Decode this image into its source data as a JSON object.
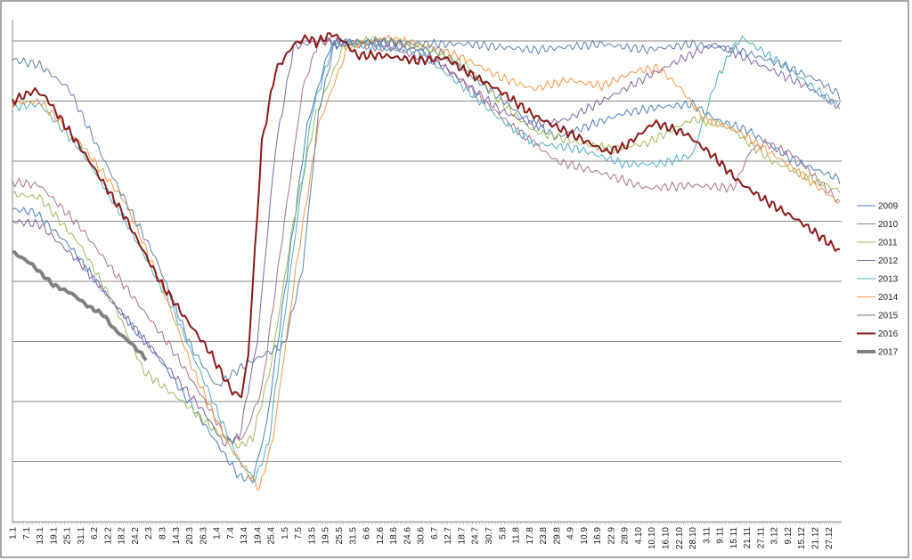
{
  "chart_data": {
    "type": "line",
    "title": "",
    "xlabel": "",
    "ylabel": "",
    "x_unit": "day of year",
    "xlim": [
      0,
      365
    ],
    "ylim": [
      0,
      8
    ],
    "y_gridlines": [
      0,
      1,
      2,
      3,
      4,
      5,
      6,
      7,
      8
    ],
    "y_tick_labels_visible": false,
    "grid": true,
    "legend_position": "right",
    "x_tick_step_days": 6,
    "x_tick_labels": [
      "1.1",
      "7.1",
      "13.1",
      "19.1",
      "25.1",
      "31.1",
      "6.2",
      "12.2",
      "18.2",
      "24.2",
      "2.3",
      "8.3",
      "14.3",
      "20.3",
      "26.3",
      "1.4",
      "7.4",
      "13.4",
      "19.4",
      "25.4",
      "1.5",
      "7.5",
      "13.5",
      "19.5",
      "25.5",
      "31.5",
      "6.6",
      "12.6",
      "18.6",
      "24.6",
      "30.6",
      "6.7",
      "12.7",
      "18.7",
      "24.7",
      "30.7",
      "5.8",
      "11.8",
      "17.8",
      "23.8",
      "29.8",
      "4.9",
      "10.9",
      "16.9",
      "22.9",
      "28.9",
      "4.10",
      "10.10",
      "16.10",
      "22.10",
      "28.10",
      "3.11",
      "9.11",
      "15.11",
      "21.11",
      "27.11",
      "3.12",
      "9.12",
      "15.12",
      "21.12",
      "27.12"
    ],
    "series": [
      {
        "name": "2009",
        "color": "#4a7ebb",
        "width": 1,
        "points": [
          [
            0,
            5.2
          ],
          [
            10,
            5.15
          ],
          [
            25,
            4.6
          ],
          [
            45,
            3.6
          ],
          [
            65,
            2.7
          ],
          [
            85,
            1.6
          ],
          [
            100,
            0.75
          ],
          [
            106,
            0.7
          ],
          [
            112,
            1.6
          ],
          [
            120,
            3.8
          ],
          [
            130,
            6.6
          ],
          [
            140,
            7.9
          ],
          [
            150,
            8.0
          ],
          [
            170,
            7.95
          ],
          [
            190,
            7.8
          ],
          [
            210,
            7.2
          ],
          [
            225,
            6.75
          ],
          [
            240,
            6.4
          ],
          [
            255,
            6.6
          ],
          [
            270,
            6.8
          ],
          [
            285,
            6.9
          ],
          [
            300,
            6.95
          ],
          [
            310,
            6.7
          ],
          [
            325,
            6.5
          ],
          [
            345,
            6.0
          ],
          [
            365,
            5.7
          ]
        ]
      },
      {
        "name": "2010",
        "color": "#aa7088",
        "width": 1,
        "points": [
          [
            0,
            5.65
          ],
          [
            12,
            5.6
          ],
          [
            30,
            4.9
          ],
          [
            50,
            3.9
          ],
          [
            70,
            2.9
          ],
          [
            85,
            2.0
          ],
          [
            95,
            1.35
          ],
          [
            102,
            1.4
          ],
          [
            110,
            2.2
          ],
          [
            120,
            5.0
          ],
          [
            128,
            7.2
          ],
          [
            135,
            8.0
          ],
          [
            150,
            7.95
          ],
          [
            170,
            7.85
          ],
          [
            190,
            7.6
          ],
          [
            205,
            7.1
          ],
          [
            220,
            6.6
          ],
          [
            240,
            6.0
          ],
          [
            260,
            5.8
          ],
          [
            280,
            5.55
          ],
          [
            300,
            5.6
          ],
          [
            318,
            5.55
          ],
          [
            326,
            6.2
          ],
          [
            332,
            6.3
          ],
          [
            345,
            6.1
          ],
          [
            365,
            5.3
          ]
        ]
      },
      {
        "name": "2011",
        "color": "#9bbb59",
        "width": 1,
        "points": [
          [
            0,
            5.45
          ],
          [
            12,
            5.4
          ],
          [
            30,
            4.6
          ],
          [
            45,
            3.6
          ],
          [
            58,
            2.5
          ],
          [
            75,
            2.0
          ],
          [
            90,
            1.5
          ],
          [
            100,
            1.25
          ],
          [
            106,
            1.4
          ],
          [
            114,
            2.6
          ],
          [
            124,
            5.0
          ],
          [
            134,
            6.8
          ],
          [
            146,
            7.9
          ],
          [
            160,
            8.05
          ],
          [
            180,
            7.9
          ],
          [
            200,
            7.6
          ],
          [
            215,
            7.0
          ],
          [
            230,
            6.5
          ],
          [
            250,
            6.3
          ],
          [
            265,
            6.2
          ],
          [
            280,
            6.3
          ],
          [
            300,
            6.7
          ],
          [
            315,
            6.6
          ],
          [
            335,
            6.0
          ],
          [
            365,
            5.5
          ]
        ]
      },
      {
        "name": "2012",
        "color": "#8064a2",
        "width": 1,
        "points": [
          [
            0,
            5.0
          ],
          [
            12,
            4.95
          ],
          [
            30,
            4.3
          ],
          [
            50,
            3.4
          ],
          [
            70,
            2.5
          ],
          [
            85,
            1.8
          ],
          [
            93,
            1.3
          ],
          [
            100,
            1.4
          ],
          [
            108,
            3.0
          ],
          [
            116,
            6.2
          ],
          [
            124,
            7.9
          ],
          [
            135,
            8.0
          ],
          [
            160,
            7.95
          ],
          [
            180,
            7.85
          ],
          [
            200,
            7.3
          ],
          [
            215,
            6.85
          ],
          [
            230,
            6.6
          ],
          [
            245,
            6.7
          ],
          [
            265,
            7.1
          ],
          [
            280,
            7.4
          ],
          [
            295,
            7.7
          ],
          [
            310,
            7.95
          ],
          [
            330,
            7.6
          ],
          [
            350,
            7.25
          ],
          [
            365,
            6.9
          ]
        ]
      },
      {
        "name": "2013",
        "color": "#4bacc6",
        "width": 1,
        "points": [
          [
            0,
            6.9
          ],
          [
            12,
            6.95
          ],
          [
            30,
            6.2
          ],
          [
            50,
            5.0
          ],
          [
            70,
            3.6
          ],
          [
            85,
            2.3
          ],
          [
            100,
            1.0
          ],
          [
            107,
            0.7
          ],
          [
            113,
            1.3
          ],
          [
            122,
            4.0
          ],
          [
            132,
            6.8
          ],
          [
            142,
            8.0
          ],
          [
            160,
            7.9
          ],
          [
            180,
            7.8
          ],
          [
            200,
            7.2
          ],
          [
            215,
            6.7
          ],
          [
            230,
            6.3
          ],
          [
            250,
            6.2
          ],
          [
            270,
            5.95
          ],
          [
            285,
            5.95
          ],
          [
            300,
            6.1
          ],
          [
            310,
            7.3
          ],
          [
            318,
            7.9
          ],
          [
            322,
            8.05
          ],
          [
            340,
            7.6
          ],
          [
            365,
            6.9
          ]
        ]
      },
      {
        "name": "2014",
        "color": "#f79646",
        "width": 1,
        "points": [
          [
            0,
            6.95
          ],
          [
            12,
            7.0
          ],
          [
            30,
            6.3
          ],
          [
            50,
            5.3
          ],
          [
            65,
            4.0
          ],
          [
            80,
            2.5
          ],
          [
            95,
            1.3
          ],
          [
            105,
            0.75
          ],
          [
            109,
            0.55
          ],
          [
            115,
            1.4
          ],
          [
            125,
            4.2
          ],
          [
            135,
            6.6
          ],
          [
            148,
            7.9
          ],
          [
            165,
            8.05
          ],
          [
            185,
            7.9
          ],
          [
            200,
            7.7
          ],
          [
            215,
            7.4
          ],
          [
            230,
            7.2
          ],
          [
            245,
            7.35
          ],
          [
            260,
            7.25
          ],
          [
            275,
            7.5
          ],
          [
            285,
            7.55
          ],
          [
            295,
            7.2
          ],
          [
            305,
            6.7
          ],
          [
            320,
            6.5
          ],
          [
            340,
            6.0
          ],
          [
            365,
            5.3
          ]
        ]
      },
      {
        "name": "2015",
        "color": "#5b7faa",
        "width": 1,
        "points": [
          [
            0,
            7.69
          ],
          [
            12,
            7.6
          ],
          [
            25,
            7.2
          ],
          [
            42,
            5.9
          ],
          [
            63,
            4.4
          ],
          [
            79,
            2.9
          ],
          [
            90,
            2.25
          ],
          [
            100,
            2.55
          ],
          [
            112,
            2.8
          ],
          [
            120,
            2.95
          ],
          [
            128,
            4.2
          ],
          [
            135,
            6.8
          ],
          [
            142,
            7.95
          ],
          [
            160,
            8.0
          ],
          [
            180,
            7.95
          ],
          [
            200,
            7.95
          ],
          [
            230,
            7.85
          ],
          [
            260,
            7.95
          ],
          [
            280,
            7.85
          ],
          [
            300,
            7.95
          ],
          [
            320,
            7.85
          ],
          [
            340,
            7.6
          ],
          [
            355,
            7.35
          ],
          [
            365,
            7.1
          ]
        ]
      },
      {
        "name": "2016",
        "color": "#8b1a1a",
        "width": 2,
        "points": [
          [
            0,
            7.0
          ],
          [
            10,
            7.18
          ],
          [
            15,
            7.05
          ],
          [
            34,
            6.0
          ],
          [
            50,
            5.05
          ],
          [
            65,
            4.0
          ],
          [
            77,
            3.35
          ],
          [
            87,
            2.83
          ],
          [
            97,
            2.16
          ],
          [
            101,
            2.09
          ],
          [
            104,
            2.76
          ],
          [
            110,
            6.3
          ],
          [
            116,
            7.5
          ],
          [
            124,
            7.94
          ],
          [
            130,
            8.06
          ],
          [
            134,
            7.97
          ],
          [
            141,
            8.12
          ],
          [
            146,
            8.0
          ],
          [
            152,
            7.76
          ],
          [
            163,
            7.76
          ],
          [
            179,
            7.67
          ],
          [
            191,
            7.72
          ],
          [
            199,
            7.52
          ],
          [
            215,
            7.17
          ],
          [
            230,
            6.76
          ],
          [
            246,
            6.46
          ],
          [
            262,
            6.16
          ],
          [
            270,
            6.24
          ],
          [
            283,
            6.64
          ],
          [
            297,
            6.46
          ],
          [
            309,
            6.09
          ],
          [
            321,
            5.64
          ],
          [
            332,
            5.35
          ],
          [
            348,
            4.98
          ],
          [
            365,
            4.5
          ]
        ]
      },
      {
        "name": "2017",
        "color": "#808080",
        "width": 4,
        "points": [
          [
            0,
            4.49
          ],
          [
            8,
            4.3
          ],
          [
            18,
            3.94
          ],
          [
            26,
            3.8
          ],
          [
            34,
            3.57
          ],
          [
            40,
            3.45
          ],
          [
            45,
            3.2
          ],
          [
            52,
            2.98
          ],
          [
            59,
            2.71
          ]
        ]
      }
    ]
  }
}
